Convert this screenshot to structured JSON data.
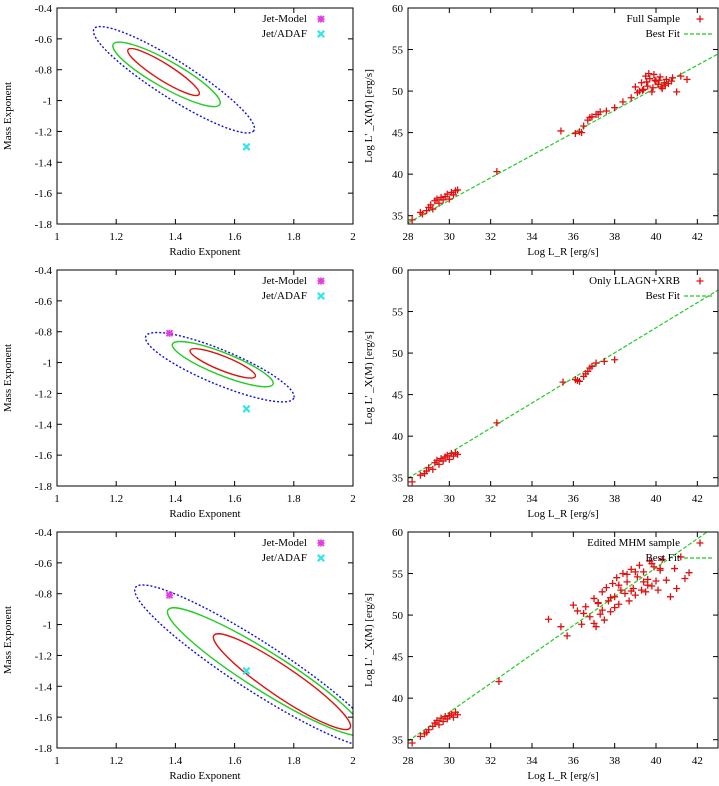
{
  "colors": {
    "jet_model": "#e040e0",
    "jet_adaf": "#33e6e6",
    "contour_inner": "#e01010",
    "contour_mid": "#22cc22",
    "contour_outer": "#1010e0",
    "sample": "#e01010",
    "fit": "#22cc22"
  },
  "chart_data": [
    {
      "id": "top-left",
      "type": "scatter",
      "kind": "contour",
      "xlabel": "Radio Exponent",
      "ylabel": "Mass Exponent",
      "xlim": [
        1,
        2
      ],
      "ylim": [
        -1.8,
        -0.4
      ],
      "xticks": [
        1,
        1.2,
        1.4,
        1.6,
        1.8,
        2
      ],
      "xtick_labels": [
        "1",
        "1.2",
        "1.4",
        "1.6",
        "1.8",
        "2"
      ],
      "yticks": [
        -0.4,
        -0.6,
        -0.8,
        -1,
        -1.2,
        -1.4,
        -1.6,
        -1.8
      ],
      "ytick_labels": [
        "-0.4",
        "-0.6",
        "-0.8",
        "-1",
        "-1.2",
        "-1.4",
        "-1.6",
        "-1.8"
      ],
      "legend": [
        "Jet-Model",
        "Jet/ADAF"
      ],
      "points": [
        {
          "name": "Jet-Model",
          "x": null,
          "y": null
        },
        {
          "name": "Jet/ADAF",
          "x": 1.64,
          "y": -1.3
        }
      ],
      "contours": [
        {
          "level": "inner",
          "cx": 1.36,
          "cy": -0.815,
          "end": [
            0.12,
            -0.145
          ],
          "minor": 0.028
        },
        {
          "level": "mid",
          "cx": 1.37,
          "cy": -0.83,
          "end": [
            0.18,
            -0.195
          ],
          "minor": 0.045
        },
        {
          "level": "outer",
          "cx": 1.395,
          "cy": -0.865,
          "end": [
            0.27,
            -0.33
          ],
          "minor": 0.062
        }
      ]
    },
    {
      "id": "top-right",
      "type": "scatter",
      "kind": "fit",
      "xlabel": "Log L_R [erg/s]",
      "ylabel": "Log L' _X(M) [erg/s]",
      "xlim": [
        28,
        43
      ],
      "ylim": [
        34,
        60
      ],
      "xticks": [
        28,
        30,
        32,
        34,
        36,
        38,
        40,
        42
      ],
      "xtick_labels": [
        "28",
        "30",
        "32",
        "34",
        "36",
        "38",
        "40",
        "42"
      ],
      "yticks": [
        35,
        40,
        45,
        50,
        55,
        60
      ],
      "ytick_labels": [
        "35",
        "40",
        "45",
        "50",
        "55",
        "60"
      ],
      "legend": [
        "Full Sample",
        "Best Fit"
      ],
      "fit": {
        "slope": 1.355,
        "intercept": -3.8
      },
      "series": [
        {
          "name": "Full Sample",
          "x": [
            28.2,
            28.6,
            28.9,
            29.0,
            29.1,
            29.3,
            29.4,
            29.5,
            29.6,
            29.7,
            29.8,
            29.9,
            30.0,
            30.1,
            30.2,
            30.3,
            30.4,
            29.2,
            28.7,
            32.3,
            35.4,
            36.1,
            36.3,
            36.5,
            36.7,
            36.9,
            37.1,
            37.3,
            36.4,
            36.8,
            37.2,
            37.6,
            38.0,
            38.4,
            38.8,
            39.0,
            39.1,
            39.3,
            39.4,
            39.5,
            39.6,
            39.7,
            39.8,
            39.9,
            40.0,
            40.1,
            40.2,
            40.3,
            40.4,
            40.5,
            40.6,
            40.8,
            41.0,
            41.2,
            41.5,
            39.2,
            39.55,
            39.85,
            40.15,
            40.45,
            40.75,
            39.35,
            39.65,
            39.95,
            40.25
          ],
          "y": [
            34.5,
            35.4,
            35.6,
            36.0,
            36.3,
            36.8,
            37.0,
            36.5,
            37.2,
            36.9,
            37.3,
            37.6,
            37.0,
            37.8,
            37.5,
            38.0,
            38.1,
            35.8,
            35.2,
            40.3,
            45.2,
            44.9,
            45.1,
            45.8,
            46.5,
            46.9,
            47.2,
            47.5,
            45.0,
            46.8,
            47.2,
            47.6,
            48.0,
            48.7,
            49.2,
            50.5,
            49.8,
            51.0,
            50.2,
            51.8,
            50.6,
            51.5,
            49.9,
            52.0,
            51.2,
            50.8,
            51.7,
            50.3,
            51.0,
            51.4,
            50.9,
            51.6,
            49.9,
            51.8,
            51.4,
            50.0,
            51.1,
            50.4,
            51.3,
            50.7,
            51.2,
            50.1,
            52.1,
            51.3,
            50.5
          ]
        }
      ]
    },
    {
      "id": "mid-left",
      "type": "scatter",
      "kind": "contour",
      "xlabel": "Radio Exponent",
      "ylabel": "Mass Exponent",
      "xlim": [
        1,
        2
      ],
      "ylim": [
        -1.8,
        -0.4
      ],
      "xticks": [
        1,
        1.2,
        1.4,
        1.6,
        1.8,
        2
      ],
      "xtick_labels": [
        "1",
        "1.2",
        "1.4",
        "1.6",
        "1.8",
        "2"
      ],
      "yticks": [
        -0.4,
        -0.6,
        -0.8,
        -1,
        -1.2,
        -1.4,
        -1.6,
        -1.8
      ],
      "ytick_labels": [
        "-0.4",
        "-0.6",
        "-0.8",
        "-1",
        "-1.2",
        "-1.4",
        "-1.6",
        "-1.8"
      ],
      "legend": [
        "Jet-Model",
        "Jet/ADAF"
      ],
      "points": [
        {
          "name": "Jet-Model",
          "x": 1.38,
          "y": -0.81
        },
        {
          "name": "Jet/ADAF",
          "x": 1.64,
          "y": -1.3
        }
      ],
      "contours": [
        {
          "level": "inner",
          "cx": 1.56,
          "cy": -1.005,
          "end": [
            0.11,
            -0.085
          ],
          "minor": 0.024
        },
        {
          "level": "mid",
          "cx": 1.56,
          "cy": -1.01,
          "end": [
            0.17,
            -0.13
          ],
          "minor": 0.038
        },
        {
          "level": "outer",
          "cx": 1.55,
          "cy": -1.03,
          "end": [
            0.25,
            -0.2
          ],
          "minor": 0.058
        }
      ]
    },
    {
      "id": "mid-right",
      "type": "scatter",
      "kind": "fit",
      "xlabel": "Log L_R [erg/s]",
      "ylabel": "Log L' _X(M) [erg/s]",
      "xlim": [
        28,
        43
      ],
      "ylim": [
        34,
        60
      ],
      "xticks": [
        28,
        30,
        32,
        34,
        36,
        38,
        40,
        42
      ],
      "xtick_labels": [
        "28",
        "30",
        "32",
        "34",
        "36",
        "38",
        "40",
        "42"
      ],
      "yticks": [
        35,
        40,
        45,
        50,
        55,
        60
      ],
      "ytick_labels": [
        "35",
        "40",
        "45",
        "50",
        "55",
        "60"
      ],
      "legend": [
        "Only LLAGN+XRB",
        "Best Fit"
      ],
      "fit": {
        "slope": 1.51,
        "intercept": -7.35
      },
      "series": [
        {
          "name": "Only LLAGN+XRB",
          "x": [
            28.2,
            28.6,
            28.9,
            29.0,
            29.2,
            29.3,
            29.4,
            29.5,
            29.6,
            29.7,
            29.8,
            29.9,
            30.0,
            30.1,
            30.2,
            30.3,
            30.4,
            28.8,
            32.3,
            35.5,
            36.1,
            36.3,
            36.5,
            36.7,
            36.9,
            37.1,
            37.5,
            38.0,
            36.2,
            36.6,
            36.8
          ],
          "y": [
            34.5,
            35.3,
            35.8,
            36.2,
            36.0,
            36.8,
            37.1,
            36.6,
            37.3,
            37.0,
            37.5,
            37.7,
            37.2,
            37.9,
            37.6,
            38.0,
            37.8,
            35.5,
            41.6,
            46.5,
            46.8,
            46.6,
            47.2,
            47.8,
            48.4,
            48.8,
            49.0,
            49.2,
            46.7,
            47.5,
            48.2
          ]
        }
      ]
    },
    {
      "id": "bottom-left",
      "type": "scatter",
      "kind": "contour",
      "xlabel": "Radio Exponent",
      "ylabel": "Mass Exponent",
      "xlim": [
        1,
        2
      ],
      "ylim": [
        -1.8,
        -0.4
      ],
      "xticks": [
        1,
        1.2,
        1.4,
        1.6,
        1.8,
        2
      ],
      "xtick_labels": [
        "1",
        "1.2",
        "1.4",
        "1.6",
        "1.8",
        "2"
      ],
      "yticks": [
        -0.4,
        -0.6,
        -0.8,
        -1,
        -1.2,
        -1.4,
        -1.6,
        -1.8
      ],
      "ytick_labels": [
        "-0.4",
        "-0.6",
        "-0.8",
        "-1",
        "-1.2",
        "-1.4",
        "-1.6",
        "-1.8"
      ],
      "legend": [
        "Jet-Model",
        "Jet/ADAF"
      ],
      "points": [
        {
          "name": "Jet-Model",
          "x": 1.38,
          "y": -0.81
        },
        {
          "name": "Jet/ADAF",
          "x": 1.64,
          "y": -1.3
        }
      ],
      "contours": [
        {
          "level": "inner",
          "cx": 1.76,
          "cy": -1.37,
          "end": [
            0.23,
            -0.3
          ],
          "minor": 0.05
        },
        {
          "level": "mid",
          "cx": 1.705,
          "cy": -1.305,
          "end": [
            0.33,
            -0.4
          ],
          "minor": 0.065
        },
        {
          "level": "outer",
          "cx": 1.675,
          "cy": -1.27,
          "end": [
            0.41,
            -0.51
          ],
          "minor": 0.082
        }
      ]
    },
    {
      "id": "bottom-right",
      "type": "scatter",
      "kind": "fit",
      "xlabel": "Log L_R [erg/s]",
      "ylabel": "Log L' _X(M) [erg/s]",
      "xlim": [
        28,
        43
      ],
      "ylim": [
        34,
        60
      ],
      "xticks": [
        28,
        30,
        32,
        34,
        36,
        38,
        40,
        42
      ],
      "xtick_labels": [
        "28",
        "30",
        "32",
        "34",
        "36",
        "38",
        "40",
        "42"
      ],
      "yticks": [
        35,
        40,
        45,
        50,
        55,
        60
      ],
      "ytick_labels": [
        "35",
        "40",
        "45",
        "50",
        "55",
        "60"
      ],
      "legend": [
        "Edited MHM sample",
        "Best Fit"
      ],
      "fit": {
        "slope": 1.74,
        "intercept": -13.9
      },
      "series": [
        {
          "name": "Edited MHM sample",
          "x": [
            28.2,
            28.6,
            28.9,
            29.0,
            29.2,
            29.3,
            29.4,
            29.5,
            29.6,
            29.7,
            29.8,
            29.9,
            30.0,
            30.1,
            30.2,
            30.3,
            30.4,
            28.8,
            32.4,
            34.8,
            35.4,
            35.7,
            36.0,
            36.2,
            36.4,
            36.6,
            36.8,
            37.0,
            37.1,
            37.2,
            37.3,
            37.4,
            37.5,
            37.6,
            37.7,
            37.8,
            37.9,
            38.0,
            38.1,
            38.2,
            38.3,
            38.4,
            38.5,
            38.6,
            38.7,
            38.8,
            38.9,
            39.0,
            39.1,
            39.2,
            39.3,
            39.4,
            39.5,
            39.6,
            39.7,
            39.8,
            39.9,
            40.0,
            40.1,
            40.2,
            40.3,
            40.5,
            40.7,
            40.9,
            41.0,
            41.2,
            41.4,
            41.6,
            37.0,
            37.4,
            37.8,
            38.2,
            38.6,
            39.0,
            39.4,
            39.8,
            40.2,
            36.5,
            37.2,
            38.0,
            38.8,
            39.6
          ],
          "y": [
            34.6,
            35.4,
            35.9,
            36.2,
            36.6,
            37.0,
            37.3,
            36.8,
            37.6,
            37.2,
            37.8,
            37.5,
            37.9,
            38.1,
            37.7,
            38.3,
            38.0,
            35.7,
            42.0,
            49.5,
            48.6,
            47.5,
            51.2,
            50.5,
            48.9,
            51.0,
            49.8,
            52.0,
            48.6,
            51.5,
            50.1,
            52.8,
            49.4,
            53.3,
            51.7,
            50.4,
            53.8,
            52.2,
            54.5,
            51.3,
            53.0,
            55.0,
            52.6,
            54.0,
            51.7,
            55.5,
            53.2,
            52.4,
            54.6,
            56.0,
            53.0,
            55.2,
            52.8,
            54.3,
            56.5,
            53.5,
            55.8,
            54.1,
            53.0,
            55.6,
            56.7,
            54.2,
            52.2,
            55.6,
            53.2,
            57.0,
            54.4,
            55.1,
            49.0,
            50.6,
            52.1,
            53.6,
            54.9,
            55.2,
            54.0,
            56.2,
            55.4,
            50.2,
            51.4,
            50.9,
            52.9,
            53.6
          ]
        }
      ]
    }
  ]
}
